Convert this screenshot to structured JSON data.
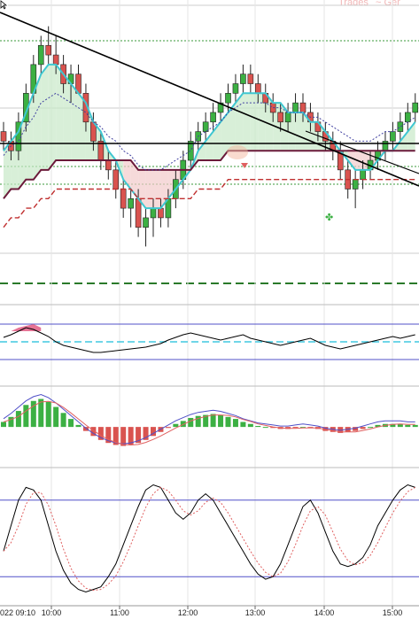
{
  "watermark": "Trades",
  "watermark_suffix": "~ Ger",
  "x_ticks": [
    "10:00",
    "11:00",
    "12:00",
    "13:00",
    "14:00",
    "15:00"
  ],
  "x_start_label": "022 09:10",
  "colors": {
    "bull": "#3cb043",
    "bear": "#d9534f",
    "fast_ma": "#3fc7d1",
    "slow_ma": "#6b1a3a",
    "trend": "#000000",
    "guide": "#3a9a3a",
    "signal": "#e06060",
    "macd": "#5050c8",
    "rsi": "#000000",
    "rsi_signal": "#e06060",
    "level": "#5050c8",
    "mid": "#40c8e0"
  },
  "chart_data": [
    {
      "type": "candlestick",
      "panel": "price",
      "x_unit": "bar index (5-min bars from 09:10)",
      "ohlc": [
        [
          5,
          6,
          3,
          4
        ],
        [
          4,
          5,
          2,
          3
        ],
        [
          3,
          7,
          2,
          6
        ],
        [
          6,
          10,
          5,
          9
        ],
        [
          9,
          13,
          8,
          12
        ],
        [
          12,
          15,
          11,
          14
        ],
        [
          14,
          16,
          12,
          13
        ],
        [
          13,
          15,
          11,
          12
        ],
        [
          12,
          13,
          9,
          10
        ],
        [
          10,
          12,
          8,
          11
        ],
        [
          11,
          12,
          9,
          9
        ],
        [
          9,
          10,
          5,
          6
        ],
        [
          6,
          7,
          3,
          4
        ],
        [
          4,
          5,
          1,
          2
        ],
        [
          2,
          3,
          0,
          1
        ],
        [
          1,
          2,
          -2,
          -1
        ],
        [
          -1,
          0,
          -4,
          -3
        ],
        [
          -3,
          -1,
          -5,
          -2
        ],
        [
          -2,
          -1,
          -6,
          -5
        ],
        [
          -5,
          -3,
          -7,
          -4
        ],
        [
          -4,
          -2,
          -6,
          -3
        ],
        [
          -3,
          -2,
          -5,
          -4
        ],
        [
          -4,
          -1,
          -5,
          -2
        ],
        [
          -2,
          1,
          -3,
          0
        ],
        [
          0,
          3,
          -1,
          2
        ],
        [
          2,
          5,
          1,
          4
        ],
        [
          4,
          6,
          3,
          5
        ],
        [
          5,
          7,
          4,
          6
        ],
        [
          6,
          8,
          5,
          7
        ],
        [
          7,
          9,
          6,
          8
        ],
        [
          8,
          10,
          7,
          9
        ],
        [
          9,
          11,
          8,
          10
        ],
        [
          10,
          12,
          9,
          11
        ],
        [
          11,
          12,
          9,
          10
        ],
        [
          10,
          11,
          8,
          9
        ],
        [
          9,
          10,
          7,
          8
        ],
        [
          8,
          9,
          6,
          7
        ],
        [
          7,
          8,
          5,
          6
        ],
        [
          6,
          8,
          5,
          7
        ],
        [
          7,
          9,
          6,
          8
        ],
        [
          8,
          9,
          6,
          7
        ],
        [
          7,
          8,
          5,
          6
        ],
        [
          6,
          7,
          4,
          5
        ],
        [
          5,
          6,
          3,
          4
        ],
        [
          4,
          5,
          2,
          3
        ],
        [
          3,
          4,
          0,
          1
        ],
        [
          1,
          2,
          -2,
          -1
        ],
        [
          -1,
          1,
          -3,
          0
        ],
        [
          0,
          2,
          -1,
          1
        ],
        [
          1,
          3,
          0,
          2
        ],
        [
          2,
          4,
          1,
          3
        ],
        [
          3,
          5,
          2,
          4
        ],
        [
          4,
          6,
          3,
          5
        ],
        [
          5,
          7,
          4,
          6
        ],
        [
          6,
          8,
          5,
          7
        ],
        [
          7,
          9,
          6,
          8
        ]
      ],
      "fast_ma": [
        3,
        4,
        5,
        7,
        9,
        11,
        12,
        12,
        11,
        10,
        9,
        8,
        6,
        5,
        3,
        2,
        0,
        -1,
        -2,
        -3,
        -3,
        -3,
        -2,
        -1,
        0,
        1,
        3,
        4,
        5,
        6,
        7,
        8,
        9,
        9,
        9,
        9,
        8,
        8,
        7,
        7,
        7,
        6,
        6,
        5,
        4,
        3,
        2,
        1,
        1,
        1,
        2,
        3,
        3,
        4,
        5,
        6
      ],
      "slow_ma": [
        -2,
        -1,
        -1,
        0,
        0,
        1,
        1,
        2,
        2,
        2,
        2,
        2,
        2,
        2,
        2,
        2,
        2,
        2,
        1,
        1,
        1,
        1,
        1,
        1,
        1,
        1,
        2,
        2,
        2,
        2,
        3,
        3,
        3,
        3,
        3,
        3,
        3,
        3,
        3,
        3,
        3,
        3,
        3,
        3,
        3,
        3,
        3,
        3,
        3,
        3,
        3,
        3,
        3,
        3,
        3,
        3
      ],
      "ylim": [
        -9,
        18
      ]
    },
    {
      "type": "line",
      "panel": "rsi-oscillator",
      "values": [
        55,
        58,
        62,
        66,
        64,
        60,
        56,
        50,
        46,
        44,
        42,
        40,
        38,
        38,
        39,
        40,
        41,
        42,
        43,
        44,
        46,
        48,
        52,
        55,
        58,
        60,
        58,
        56,
        54,
        52,
        54,
        56,
        58,
        54,
        52,
        50,
        48,
        46,
        48,
        50,
        52,
        54,
        50,
        46,
        44,
        42,
        44,
        46,
        48,
        50,
        52,
        54,
        56,
        54,
        56,
        58
      ],
      "levels": [
        30,
        50,
        70
      ],
      "ylim": [
        20,
        80
      ]
    },
    {
      "type": "bar",
      "panel": "macd-histogram",
      "values": [
        0.5,
        1.0,
        1.6,
        2.2,
        2.6,
        2.8,
        2.5,
        2.0,
        1.4,
        0.8,
        0.2,
        -0.4,
        -0.9,
        -1.3,
        -1.6,
        -1.8,
        -1.9,
        -1.8,
        -1.6,
        -1.3,
        -0.9,
        -0.5,
        -0.1,
        0.3,
        0.6,
        0.9,
        1.1,
        1.2,
        1.3,
        1.2,
        1.0,
        0.8,
        0.5,
        0.3,
        0.1,
        0.0,
        -0.1,
        -0.2,
        -0.2,
        -0.1,
        0.0,
        -0.1,
        -0.2,
        -0.4,
        -0.5,
        -0.6,
        -0.5,
        -0.4,
        -0.2,
        0.0,
        0.2,
        0.3,
        0.3,
        0.3,
        0.2,
        0.2
      ],
      "ylim": [
        -3,
        3.2
      ]
    },
    {
      "type": "line",
      "panel": "stochastic",
      "values": [
        40,
        60,
        80,
        90,
        88,
        80,
        60,
        40,
        25,
        15,
        10,
        8,
        10,
        12,
        20,
        30,
        45,
        60,
        75,
        88,
        92,
        90,
        80,
        70,
        65,
        70,
        80,
        85,
        80,
        70,
        60,
        50,
        40,
        30,
        22,
        18,
        20,
        30,
        45,
        60,
        75,
        80,
        70,
        55,
        40,
        30,
        28,
        30,
        35,
        45,
        60,
        70,
        80,
        88,
        92,
        90
      ],
      "levels": [
        20,
        80
      ],
      "ylim": [
        0,
        100
      ]
    }
  ]
}
